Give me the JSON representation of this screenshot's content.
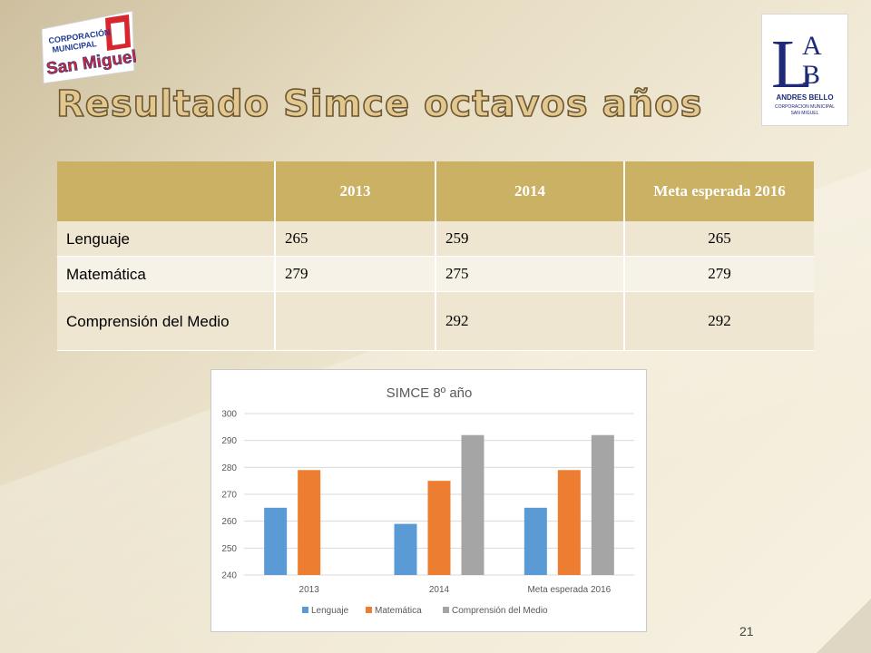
{
  "slide": {
    "title": "Resultado Simce octavos años",
    "page_number": "21"
  },
  "logos": {
    "left": {
      "line1": "CORPORACIÓN",
      "line2": "MUNICIPAL",
      "line3": "San Miguel"
    },
    "right": {
      "letters": [
        "L",
        "A",
        "B"
      ],
      "name": "ANDRES BELLO",
      "sub1": "CORPORACION MUNICIPAL",
      "sub2": "SAN MIGUEL"
    }
  },
  "table": {
    "headers": [
      "",
      "2013",
      "2014",
      "Meta esperada 2016"
    ],
    "rows": [
      [
        "Lenguaje",
        "265",
        "259",
        "265"
      ],
      [
        "Matemática",
        "279",
        "275",
        "279"
      ],
      [
        "Comprensión del Medio",
        "",
        "292",
        "292"
      ]
    ]
  },
  "chart_data": {
    "type": "bar",
    "title": "SIMCE 8º año",
    "categories": [
      "2013",
      "2014",
      "Meta esperada 2016"
    ],
    "series": [
      {
        "name": "Lenguaje",
        "color": "#5b9bd5",
        "values": [
          265,
          259,
          265
        ]
      },
      {
        "name": "Matemática",
        "color": "#ed7d31",
        "values": [
          279,
          275,
          279
        ]
      },
      {
        "name": "Comprensión del Medio",
        "color": "#a5a5a5",
        "values": [
          null,
          292,
          292
        ]
      }
    ],
    "ylim": [
      240,
      300
    ],
    "yticks": [
      "240",
      "250",
      "260",
      "270",
      "280",
      "290",
      "300"
    ],
    "grid": true,
    "legend": "bottom"
  },
  "colors": {
    "header_fill": "#cbb163",
    "title_fill": "#e2c88f"
  }
}
